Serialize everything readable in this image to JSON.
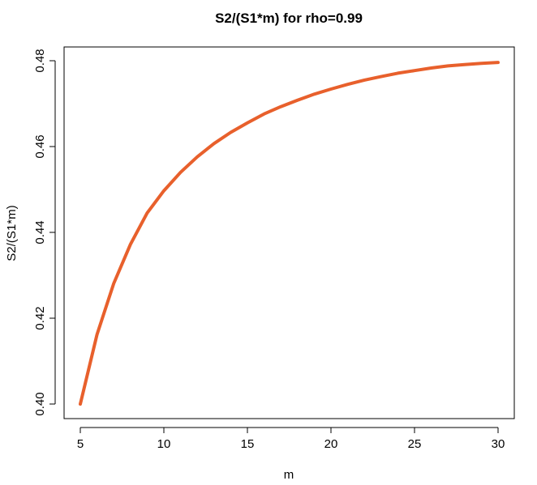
{
  "chart_data": {
    "type": "line",
    "title": "S2/(S1*m) for rho=0.99",
    "xlabel": "m",
    "ylabel": "S2/(S1*m)",
    "xlim": [
      5,
      30
    ],
    "ylim": [
      0.4,
      0.48
    ],
    "xticks": [
      5,
      10,
      15,
      20,
      25,
      30
    ],
    "yticks": [
      0.4,
      0.42,
      0.44,
      0.46,
      0.48
    ],
    "grid": false,
    "legend": "none",
    "color": "#e8602c",
    "series": [
      {
        "x": [
          5,
          6,
          7,
          8,
          9,
          10,
          11,
          12,
          13,
          14,
          15,
          16,
          17,
          18,
          19,
          20,
          21,
          22,
          23,
          24,
          25,
          26,
          27,
          28,
          29,
          30
        ],
        "y": [
          0.4,
          0.4162,
          0.4281,
          0.4372,
          0.4445,
          0.4497,
          0.454,
          0.4576,
          0.4607,
          0.4633,
          0.4655,
          0.4676,
          0.4693,
          0.4708,
          0.4722,
          0.4734,
          0.4745,
          0.4755,
          0.4763,
          0.4771,
          0.4777,
          0.4783,
          0.4788,
          0.4791,
          0.4794,
          0.4796
        ]
      }
    ]
  }
}
